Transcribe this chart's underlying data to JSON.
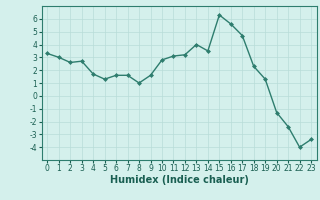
{
  "x": [
    0,
    1,
    2,
    3,
    4,
    5,
    6,
    7,
    8,
    9,
    10,
    11,
    12,
    13,
    14,
    15,
    16,
    17,
    18,
    19,
    20,
    21,
    22,
    23
  ],
  "y": [
    3.3,
    3.0,
    2.6,
    2.7,
    1.7,
    1.3,
    1.6,
    1.6,
    1.0,
    1.6,
    2.8,
    3.1,
    3.2,
    4.0,
    3.5,
    6.3,
    5.6,
    4.7,
    2.3,
    1.3,
    -1.3,
    -2.4,
    -4.0,
    -3.4
  ],
  "line_color": "#2e7d6e",
  "marker": "D",
  "marker_size": 2.0,
  "linewidth": 1.0,
  "xlabel": "Humidex (Indice chaleur)",
  "xlabel_fontsize": 7,
  "xlabel_color": "#1a5f52",
  "ylim": [
    -5,
    7
  ],
  "xlim": [
    -0.5,
    23.5
  ],
  "yticks": [
    -4,
    -3,
    -2,
    -1,
    0,
    1,
    2,
    3,
    4,
    5,
    6
  ],
  "xticks": [
    0,
    1,
    2,
    3,
    4,
    5,
    6,
    7,
    8,
    9,
    10,
    11,
    12,
    13,
    14,
    15,
    16,
    17,
    18,
    19,
    20,
    21,
    22,
    23
  ],
  "bg_color": "#d4f0ec",
  "grid_color": "#b8ddd8",
  "tick_color": "#1a5f52",
  "tick_fontsize": 5.5,
  "spine_color": "#2e7d6e"
}
